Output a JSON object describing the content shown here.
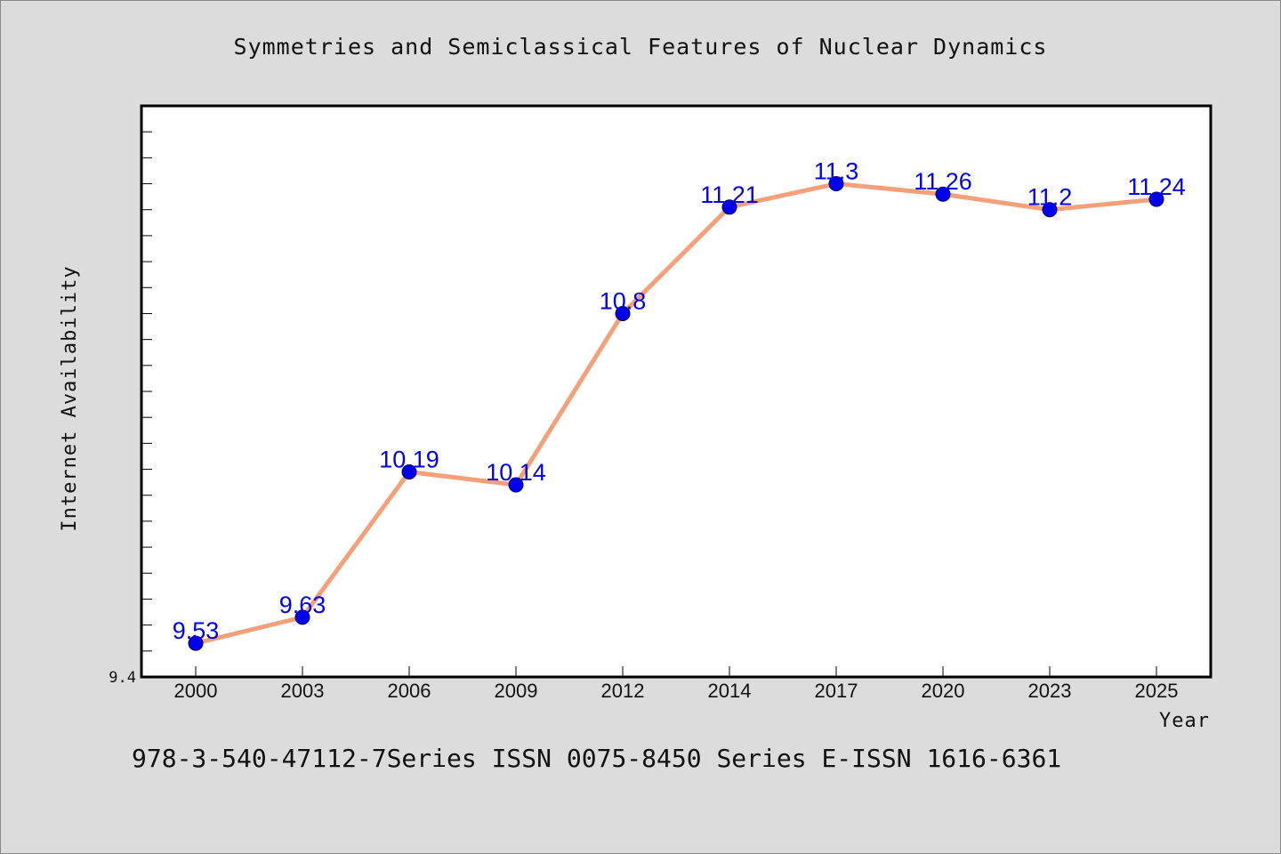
{
  "chart_data": {
    "type": "line",
    "title": "Symmetries and Semiclassical Features of Nuclear Dynamics",
    "xlabel": "Year",
    "ylabel": "Internet Availability",
    "categories": [
      "2000",
      "2003",
      "2006",
      "2009",
      "2012",
      "2014",
      "2017",
      "2020",
      "2023",
      "2025"
    ],
    "series": [
      {
        "values": [
          9.53,
          9.63,
          10.19,
          10.14,
          10.8,
          11.21,
          11.3,
          11.26,
          11.2,
          11.24
        ],
        "labels": [
          "9.53",
          "9.63",
          "10.19",
          "10.14",
          "10.8",
          "11.21",
          "11.3",
          "11.26",
          "11.2",
          "11.24"
        ]
      }
    ],
    "ylim": [
      9.4,
      11.6
    ],
    "yticks_labeled": [
      "9.4"
    ],
    "grid": false,
    "colors": {
      "line": "#f4a07a",
      "marker": "#0000ee",
      "label": "#0000ee",
      "background": "#dcdcdc",
      "plot_background": "#ffffff"
    }
  },
  "footer": "978-3-540-47112-7Series ISSN 0075-8450 Series E-ISSN 1616-6361"
}
